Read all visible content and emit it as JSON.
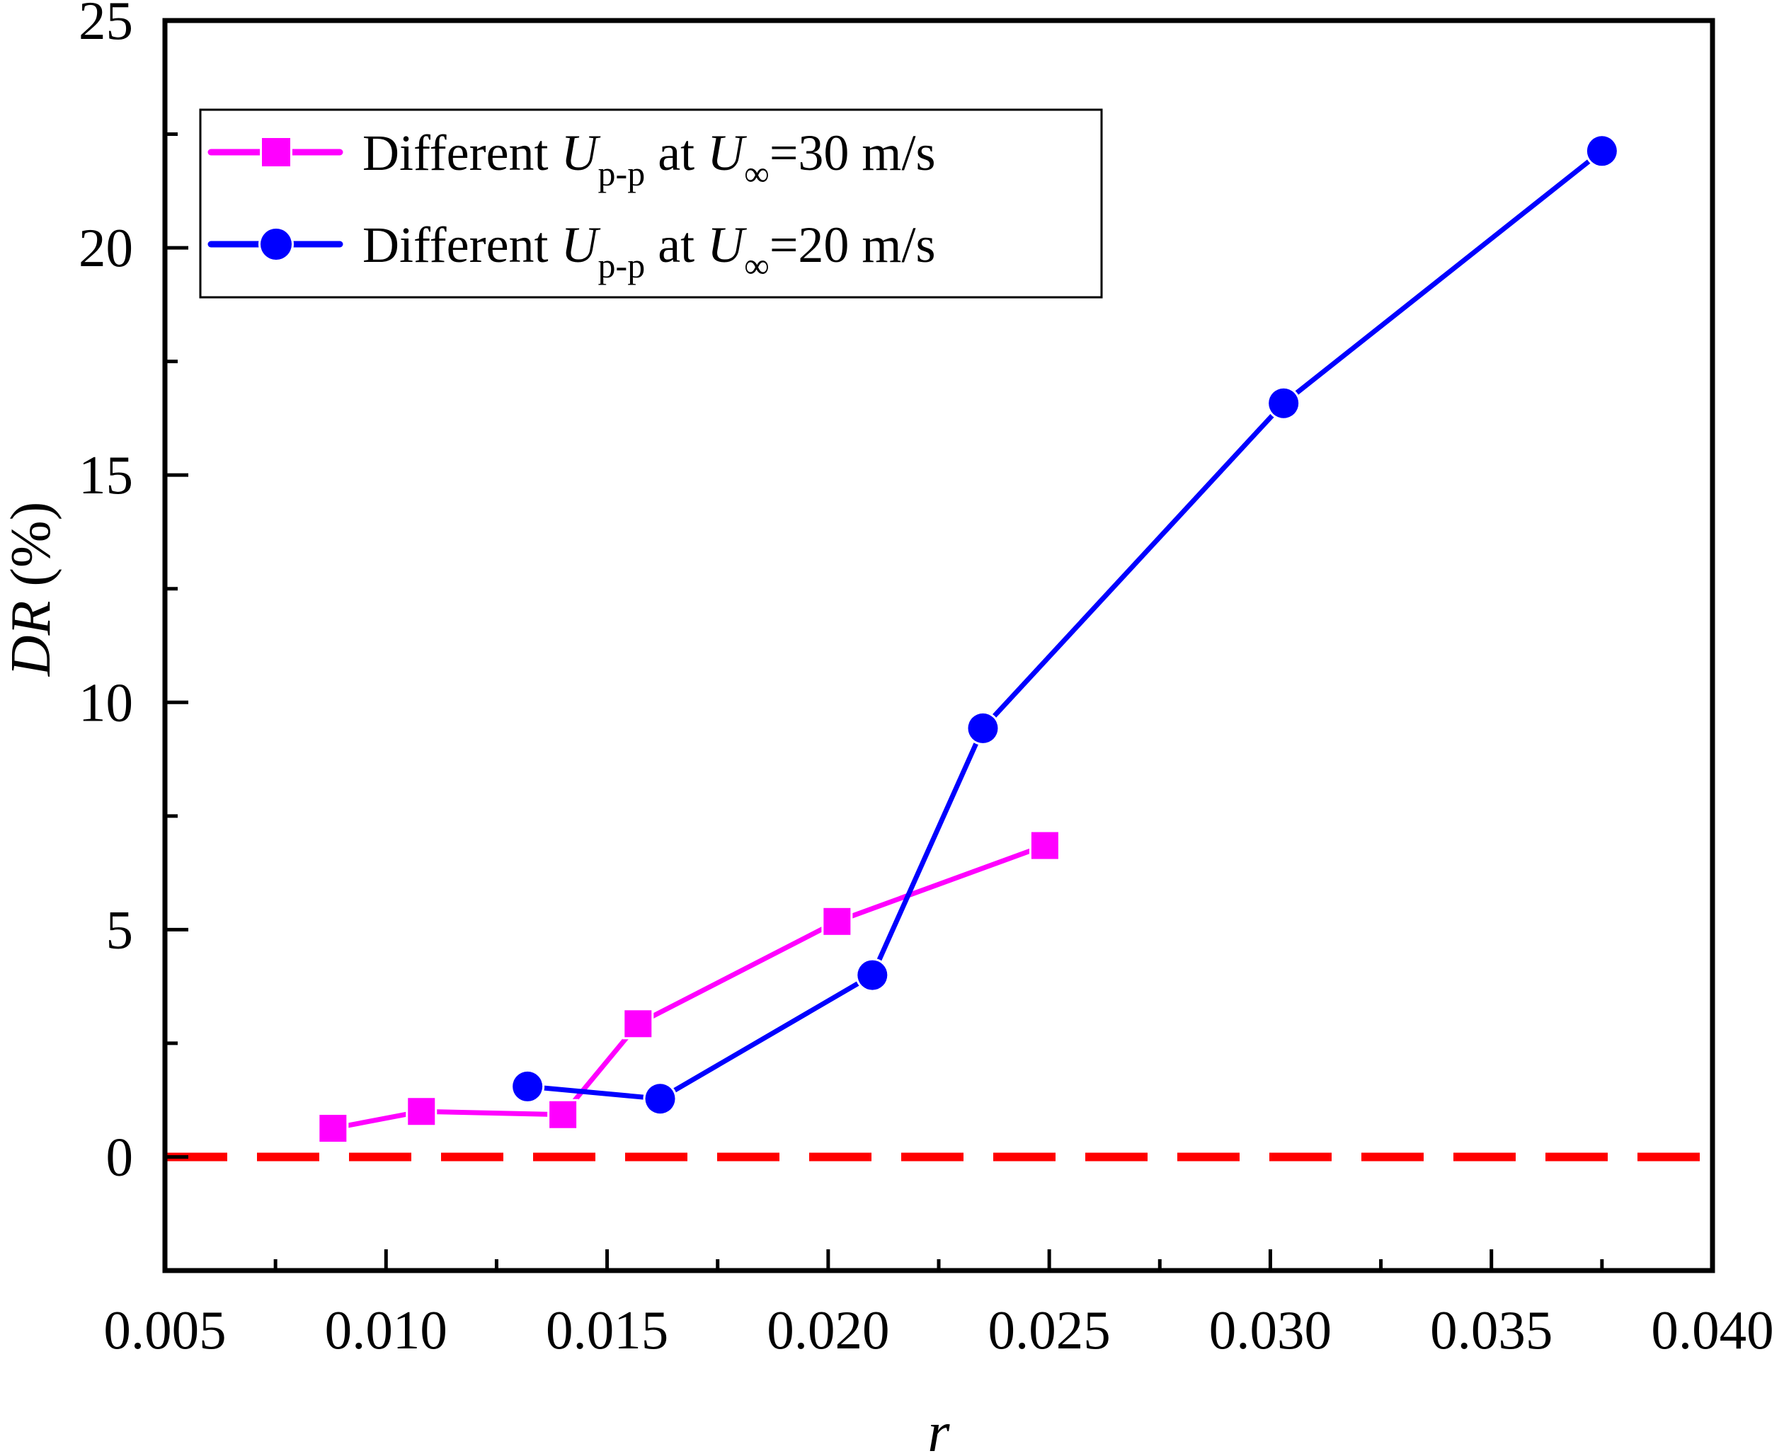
{
  "chart_data": {
    "type": "line",
    "title": "",
    "xlabel": "r",
    "ylabel_italic": "DR",
    "ylabel_unit": " (%)",
    "xlim": [
      0.005,
      0.04
    ],
    "ylim": [
      -2.5,
      25
    ],
    "x_ticks": [
      0.005,
      0.01,
      0.015,
      0.02,
      0.025,
      0.03,
      0.035,
      0.04
    ],
    "x_tick_labels": [
      "0.005",
      "0.010",
      "0.015",
      "0.020",
      "0.025",
      "0.030",
      "0.035",
      "0.040"
    ],
    "x_minor_ticks": [
      0.0075,
      0.0125,
      0.0175,
      0.0225,
      0.0275,
      0.0325,
      0.0375
    ],
    "y_ticks": [
      0,
      5,
      10,
      15,
      20,
      25
    ],
    "y_tick_labels": [
      "0",
      "5",
      "10",
      "15",
      "20",
      "25"
    ],
    "y_minor_ticks": [
      -2.5,
      2.5,
      7.5,
      12.5,
      17.5,
      22.5
    ],
    "grid": false,
    "legend_position": "top-left",
    "reference_line": {
      "y": 0,
      "style": "dashed",
      "color": "#ff0000"
    },
    "series": [
      {
        "name": "Different U_p-p at U_∞=30 m/s",
        "legend": {
          "prefix": "Different ",
          "var": "U",
          "sub": "p-p",
          "mid": " at ",
          "var2": "U",
          "sub2": "∞",
          "suffix": "=30 m/s"
        },
        "marker": "square",
        "color": "#ff00ff",
        "x": [
          0.0088,
          0.0108,
          0.014,
          0.0157,
          0.0202,
          0.0249
        ],
        "y": [
          0.63,
          1.0,
          0.93,
          2.93,
          5.18,
          6.85
        ]
      },
      {
        "name": "Different U_p-p at U_∞=20 m/s",
        "legend": {
          "prefix": "Different ",
          "var": "U",
          "sub": "p-p",
          "mid": " at ",
          "var2": "U",
          "sub2": "∞",
          "suffix": "=20 m/s"
        },
        "marker": "circle",
        "color": "#0000ff",
        "x": [
          0.0132,
          0.0162,
          0.021,
          0.0235,
          0.0303,
          0.0375
        ],
        "y": [
          1.55,
          1.28,
          4.0,
          9.43,
          16.58,
          22.13
        ]
      }
    ]
  }
}
